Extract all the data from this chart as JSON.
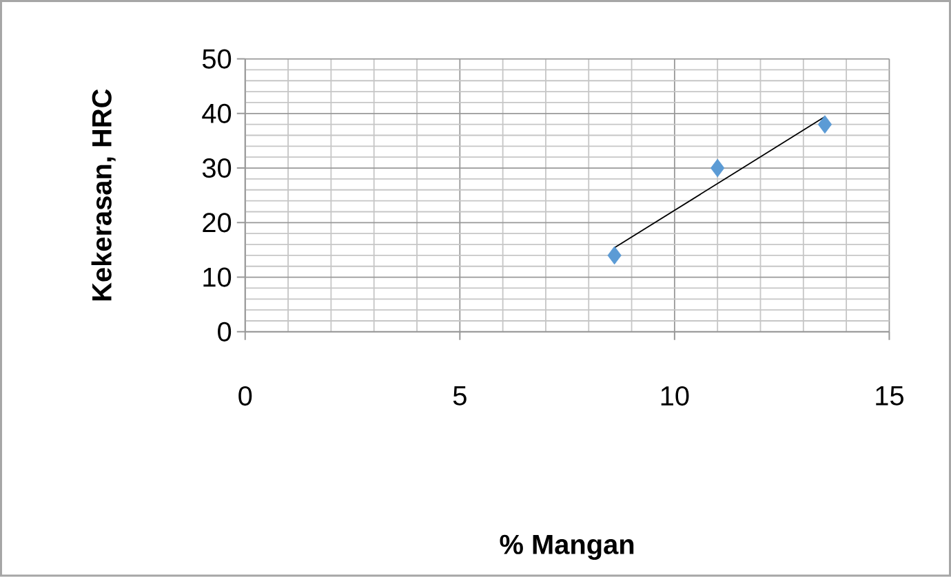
{
  "chart_data": {
    "type": "scatter",
    "xlabel": "% Mangan",
    "ylabel": "Kekerasan, HRC",
    "xlim": [
      0,
      15
    ],
    "xticks": [
      0,
      5,
      10,
      15
    ],
    "ylim": [
      0,
      50
    ],
    "yticks": [
      0,
      10,
      20,
      30,
      40,
      50
    ],
    "grid": true,
    "marker": "diamond",
    "series": [
      {
        "type": "scatter",
        "color": "#5b9bd5",
        "x": [
          8.6,
          11.0,
          13.5
        ],
        "values": [
          14,
          30,
          38
        ]
      },
      {
        "type": "line",
        "color": "#000000",
        "marker": "none",
        "line_style": "solid",
        "x": [
          8.6,
          13.5
        ],
        "values": [
          15.4,
          39.4
        ]
      }
    ]
  }
}
